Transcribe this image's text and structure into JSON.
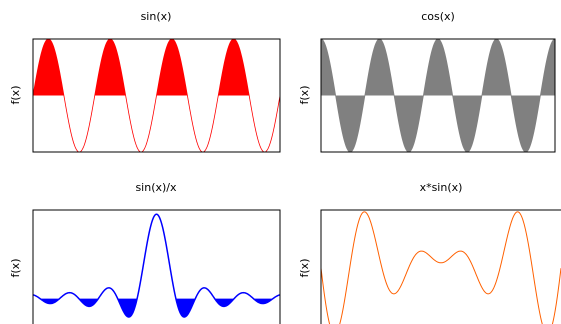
{
  "chart_data": [
    {
      "type": "area",
      "title": "sin(x)",
      "ylabel": "f(x)",
      "xlabel": "",
      "function": "sin(x)",
      "xlim": [
        0,
        25.13
      ],
      "ylim": [
        -1,
        1
      ],
      "fill_mode": "positive",
      "fill_color": "#ff0000",
      "line_color": "#ff0000",
      "line_width": 0.8,
      "series": [
        {
          "values": [
            0,
            1,
            0,
            -1,
            0,
            1,
            0,
            -1,
            0,
            1,
            0,
            -1,
            0,
            1,
            0,
            -1,
            0
          ]
        }
      ]
    },
    {
      "type": "area",
      "title": "cos(x)",
      "ylabel": "f(x)",
      "xlabel": "",
      "function": "cos(x)",
      "xlim": [
        0,
        25.13
      ],
      "ylim": [
        -1,
        1
      ],
      "fill_mode": "both",
      "fill_color": "#808080",
      "line_color": "#808080",
      "line_width": 0.8,
      "series": [
        {
          "values": [
            1,
            0,
            -1,
            0,
            1,
            0,
            -1,
            0,
            1,
            0,
            -1,
            0,
            1,
            0,
            -1,
            0,
            1
          ]
        }
      ]
    },
    {
      "type": "area",
      "title": "sin(x)/x",
      "ylabel": "f(x)",
      "xlabel": "",
      "function": "sin(x)/x",
      "xlim": [
        -20,
        20
      ],
      "ylim": [
        -0.3,
        1.05
      ],
      "fill_mode": "negative",
      "fill_color": "#0000ff",
      "line_color": "#0000ff",
      "line_width": 1.5,
      "series": [
        {
          "values": [
            0.046,
            -0.217,
            0.128,
            1,
            0.128,
            -0.217,
            0.046
          ]
        }
      ]
    },
    {
      "type": "line",
      "title": "x*sin(x)",
      "ylabel": "f(x)",
      "xlabel": "",
      "function": "x*sin(x)",
      "xlim": [
        -12.5,
        12.5
      ],
      "ylim": [
        -9.5,
        8.2
      ],
      "fill_mode": "none",
      "fill_color": "",
      "line_color": "#ff6000",
      "line_width": 1,
      "series": [
        {
          "values": [
            -9.4,
            7.9,
            3.4,
            7.9,
            -9.4
          ]
        }
      ]
    }
  ]
}
